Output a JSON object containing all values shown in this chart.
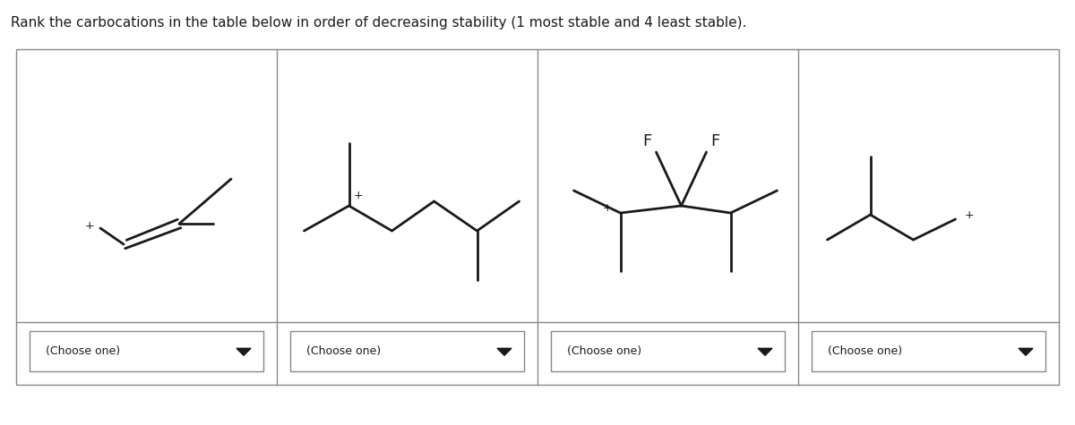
{
  "title": "Rank the carbocations in the table below in order of decreasing stability (1 most stable and 4 least stable).",
  "title_fontsize": 11,
  "bg_color": "#ffffff",
  "border_color": "#888888",
  "line_color": "#1a1a1a",
  "line_width": 2.0,
  "text_color": "#1a1a1a",
  "dropdown_text": "(Choose one)",
  "dropdown_fontsize": 9,
  "F_label_fontsize": 13,
  "plus_fontsize": 9
}
